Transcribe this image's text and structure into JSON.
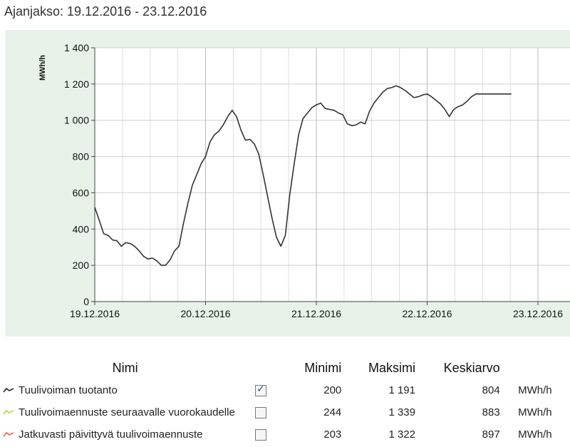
{
  "header": {
    "period_text": "Ajanjakso: 19.12.2016 - 23.12.2016"
  },
  "chart_data": {
    "type": "line",
    "ylabel": "MWh/h",
    "ylim": [
      0,
      1400
    ],
    "yticks": [
      0,
      200,
      400,
      600,
      800,
      1000,
      1200,
      1400
    ],
    "ytick_labels": [
      "0",
      "200",
      "400",
      "600",
      "800",
      "1 000",
      "1 200",
      "1 400"
    ],
    "xlim": [
      0,
      4.25
    ],
    "xticks": [
      0,
      1,
      2,
      3,
      4
    ],
    "xtick_labels": [
      "19.12.2016",
      "20.12.2016",
      "21.12.2016",
      "22.12.2016",
      "23.12.2016"
    ],
    "grid": true,
    "series": [
      {
        "name": "Tuulivoiman tuotanto",
        "color": "#333333",
        "x": [
          0,
          0.04,
          0.08,
          0.12,
          0.16,
          0.2,
          0.24,
          0.28,
          0.32,
          0.36,
          0.4,
          0.44,
          0.48,
          0.52,
          0.56,
          0.6,
          0.64,
          0.68,
          0.72,
          0.76,
          0.8,
          0.84,
          0.88,
          0.92,
          0.96,
          1.0,
          1.04,
          1.08,
          1.12,
          1.16,
          1.2,
          1.24,
          1.28,
          1.32,
          1.36,
          1.4,
          1.44,
          1.48,
          1.52,
          1.56,
          1.6,
          1.64,
          1.68,
          1.72,
          1.76,
          1.8,
          1.84,
          1.88,
          1.92,
          1.96,
          2.0,
          2.04,
          2.08,
          2.12,
          2.16,
          2.2,
          2.24,
          2.28,
          2.32,
          2.36,
          2.4,
          2.44,
          2.48,
          2.52,
          2.56,
          2.6,
          2.64,
          2.68,
          2.72,
          2.76,
          2.8,
          2.84,
          2.88,
          2.92,
          2.96,
          3.0,
          3.04,
          3.08,
          3.12,
          3.16,
          3.2,
          3.24,
          3.28,
          3.32,
          3.36,
          3.4,
          3.44,
          3.48,
          3.52,
          3.56,
          3.6,
          3.64,
          3.68,
          3.72,
          3.76
        ],
        "values": [
          520,
          450,
          375,
          365,
          340,
          335,
          305,
          325,
          320,
          305,
          280,
          250,
          235,
          240,
          225,
          200,
          200,
          230,
          280,
          305,
          430,
          540,
          640,
          700,
          760,
          800,
          880,
          920,
          940,
          975,
          1020,
          1055,
          1020,
          945,
          890,
          895,
          870,
          815,
          700,
          580,
          460,
          355,
          305,
          365,
          590,
          760,
          920,
          1010,
          1040,
          1070,
          1085,
          1095,
          1065,
          1060,
          1055,
          1040,
          1030,
          980,
          970,
          975,
          990,
          980,
          1050,
          1095,
          1125,
          1155,
          1175,
          1180,
          1190,
          1180,
          1165,
          1145,
          1125,
          1130,
          1140,
          1145,
          1130,
          1110,
          1090,
          1060,
          1020,
          1060,
          1075,
          1085,
          1105,
          1130,
          1145,
          1145,
          1145,
          1145,
          1145,
          1145,
          1145,
          1145,
          1145
        ]
      }
    ]
  },
  "legend": {
    "headers": {
      "name": "Nimi",
      "min": "Minimi",
      "max": "Maksimi",
      "avg": "Keskiarvo"
    },
    "rows": [
      {
        "name": "Tuulivoiman tuotanto",
        "color": "#333333",
        "checked": true,
        "min": "200",
        "max": "1 191",
        "avg": "804",
        "unit": "MWh/h"
      },
      {
        "name": "Tuulivoimaennuste seuraavalle vuorokaudelle",
        "color": "#b8d840",
        "checked": false,
        "min": "244",
        "max": "1 339",
        "avg": "883",
        "unit": "MWh/h"
      },
      {
        "name": "Jatkuvasti päivittyvä tuulivoimaennuste",
        "color": "#f06a50",
        "checked": false,
        "min": "203",
        "max": "1 322",
        "avg": "897",
        "unit": "MWh/h"
      }
    ]
  }
}
